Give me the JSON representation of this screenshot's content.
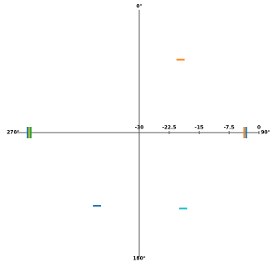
{
  "chart_data": {
    "type": "polar",
    "thetaticks": [
      {
        "value": 0,
        "label": "0°"
      },
      {
        "value": 90,
        "label": "90°"
      },
      {
        "value": 180,
        "label": "180°"
      },
      {
        "value": 270,
        "label": "270°"
      }
    ],
    "rlim": [
      -30,
      0
    ],
    "rticks": [
      -30,
      -22.5,
      -15,
      -7.5,
      0
    ],
    "points": [
      {
        "angle": 29.5,
        "r": -9,
        "color": "#ff7f0e"
      },
      {
        "angle": 150,
        "r": -8,
        "color": "#17becf"
      },
      {
        "angle": 210,
        "r": -8.8,
        "color": "#1f77b4"
      },
      {
        "angle": 90,
        "r": -3.7,
        "color": "#ff7f0e"
      },
      {
        "angle": 90,
        "r": -3.2,
        "color": "#1f77b4"
      },
      {
        "angle": 270,
        "r": -2.4,
        "color": "#bcbd22"
      },
      {
        "angle": 270,
        "r": -2.8,
        "color": "#2ca02c"
      },
      {
        "angle": 270,
        "r": -2.0,
        "color": "#1f77b4"
      }
    ]
  }
}
